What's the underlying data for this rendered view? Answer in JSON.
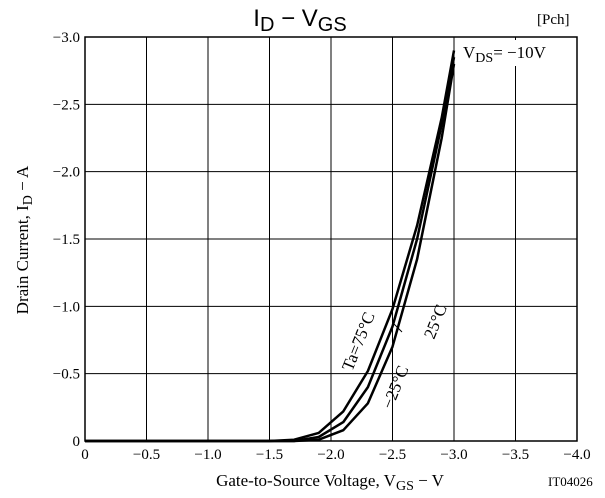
{
  "chart_data": {
    "type": "line",
    "title_parts": [
      "I",
      "D",
      " − V",
      "GS"
    ],
    "tag": "[Pch]",
    "figure_id": "IT04026",
    "xlabel_parts": [
      "Gate-to-Source Voltage, V",
      "GS",
      " − V"
    ],
    "ylabel_parts": [
      "Drain Current, I",
      "D",
      " − A"
    ],
    "annotation_parts": [
      "V",
      "DS",
      "= −10V"
    ],
    "x": [
      0,
      -1.0,
      -1.5,
      -1.7,
      -1.9,
      -2.1,
      -2.3,
      -2.5,
      -2.7,
      -2.9,
      -3.0
    ],
    "series": [
      {
        "name": "Ta=75°C",
        "color": "#000000",
        "values": [
          0,
          0,
          0,
          -0.01,
          -0.06,
          -0.22,
          -0.52,
          -0.98,
          -1.6,
          -2.4,
          -2.9
        ]
      },
      {
        "name": "25°C",
        "color": "#000000",
        "values": [
          0,
          0,
          0,
          0,
          -0.03,
          -0.14,
          -0.4,
          -0.85,
          -1.5,
          -2.35,
          -2.85
        ]
      },
      {
        "name": "−25°C",
        "color": "#000000",
        "values": [
          0,
          0,
          0,
          0,
          -0.01,
          -0.08,
          -0.28,
          -0.7,
          -1.35,
          -2.25,
          -2.8
        ]
      }
    ],
    "xlim": [
      0,
      -4.0
    ],
    "ylim": [
      0,
      -3.0
    ],
    "xticks": [
      0,
      {
        "value": -0.5,
        "label": "−0.5"
      },
      {
        "value": -1.0,
        "label": "−1.0"
      },
      {
        "value": -1.5,
        "label": "−1.5"
      },
      {
        "value": -2.0,
        "label": "−2.0"
      },
      {
        "value": -2.5,
        "label": "−2.5"
      },
      {
        "value": -3.0,
        "label": "−3.0"
      },
      {
        "value": -3.5,
        "label": "−3.5"
      },
      {
        "value": -4.0,
        "label": "−4.0"
      }
    ],
    "yticks": [
      0,
      {
        "value": -0.5,
        "label": "−0.5"
      },
      {
        "value": -1.0,
        "label": "−1.0"
      },
      {
        "value": -1.5,
        "label": "−1.5"
      },
      {
        "value": -2.0,
        "label": "−2.0"
      },
      {
        "value": -2.5,
        "label": "−2.5"
      },
      {
        "value": -3.0,
        "label": "−3.0"
      }
    ],
    "grid": true
  }
}
